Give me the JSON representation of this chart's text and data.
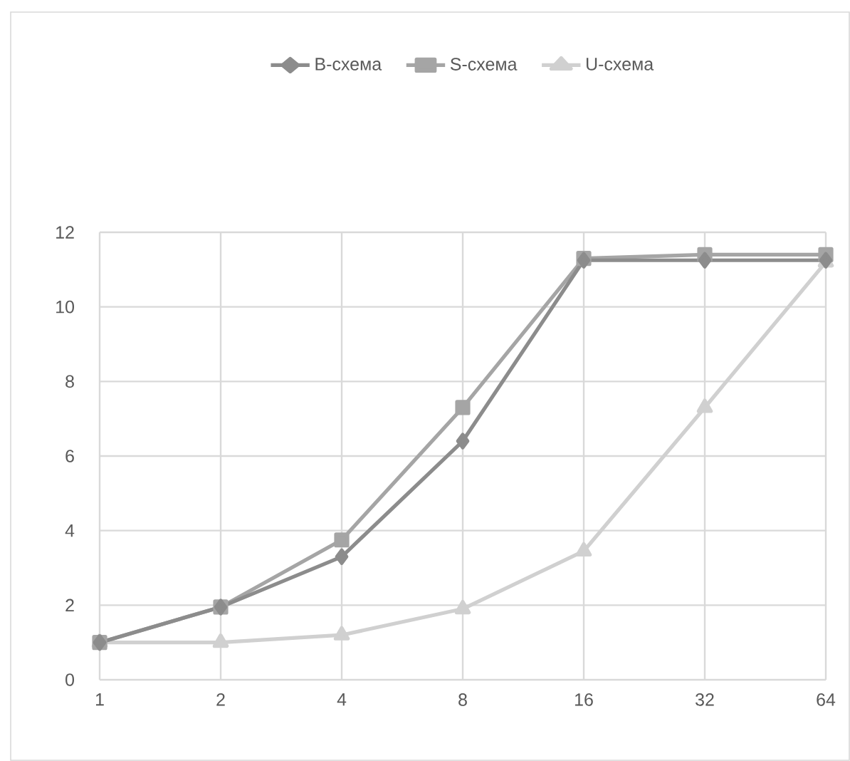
{
  "chart_data": {
    "type": "line",
    "categories": [
      "1",
      "2",
      "4",
      "8",
      "16",
      "32",
      "64"
    ],
    "series": [
      {
        "name": "B-схема",
        "color": "#8c8c8c",
        "marker": "diamond",
        "values": [
          1,
          1.95,
          3.3,
          6.4,
          11.25,
          11.25,
          11.25
        ]
      },
      {
        "name": "S-схема",
        "color": "#a5a5a5",
        "marker": "square",
        "values": [
          1,
          1.95,
          3.75,
          7.3,
          11.3,
          11.4,
          11.4
        ]
      },
      {
        "name": "U-схема",
        "color": "#d0d0d0",
        "marker": "triangle",
        "values": [
          1,
          1,
          1.2,
          1.9,
          3.45,
          7.3,
          11.2
        ]
      }
    ],
    "ylim": [
      0,
      12
    ],
    "yticks": [
      0,
      2,
      4,
      6,
      8,
      10,
      12
    ],
    "grid": true,
    "legend": "top",
    "line_style": "solid"
  }
}
